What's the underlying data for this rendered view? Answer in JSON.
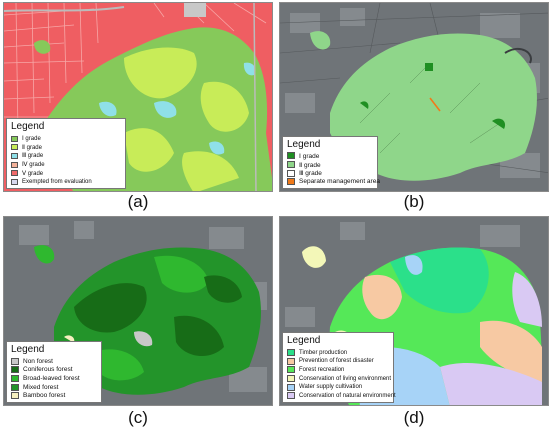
{
  "panels": [
    {
      "caption": "(a)",
      "legend_title": "Legend",
      "items": [
        {
          "label": "Ⅰ grade",
          "color": "#86c95a"
        },
        {
          "label": "Ⅱ grade",
          "color": "#c8ec58"
        },
        {
          "label": "Ⅲ grade",
          "color": "#8fe0e8"
        },
        {
          "label": "Ⅳ grade",
          "color": "#f4b29a"
        },
        {
          "label": "Ⅴ grade",
          "color": "#f06a6a"
        },
        {
          "label": "Exempted from evaluation",
          "color": "#d8d8ee"
        }
      ]
    },
    {
      "caption": "(b)",
      "legend_title": "Legend",
      "items": [
        {
          "label": "Ⅰ grade",
          "color": "#1f8f22"
        },
        {
          "label": "Ⅱ grade",
          "color": "#8fd68a"
        },
        {
          "label": "Ⅲ grade",
          "color": "#ffffff"
        },
        {
          "label": "Separate management area",
          "color": "#f07a1a"
        }
      ]
    },
    {
      "caption": "(c)",
      "legend_title": "Legend",
      "items": [
        {
          "label": "Non forest",
          "color": "#c8c8c8"
        },
        {
          "label": "Coniferous forest",
          "color": "#176c17"
        },
        {
          "label": "Broad-leaved forest",
          "color": "#2fb82f"
        },
        {
          "label": "Mixed forest",
          "color": "#23942a"
        },
        {
          "label": "Bamboo forest",
          "color": "#f6f0c0"
        }
      ]
    },
    {
      "caption": "(d)",
      "legend_title": "Legend",
      "items": [
        {
          "label": "Timber production",
          "color": "#2be08a"
        },
        {
          "label": "Prevention of forest disaster",
          "color": "#f7c9a3"
        },
        {
          "label": "Forest recreation",
          "color": "#55e858"
        },
        {
          "label": "Conservation of living environment",
          "color": "#f3f7b8"
        },
        {
          "label": "Water supply cultivation",
          "color": "#a7d3f7"
        },
        {
          "label": "Conservation of natural environment",
          "color": "#d9c9f3"
        }
      ]
    }
  ]
}
